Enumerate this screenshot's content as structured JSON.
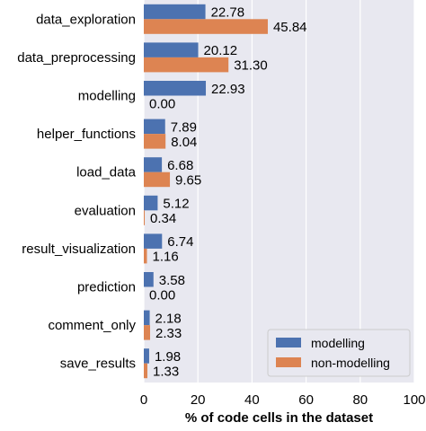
{
  "chart_data": {
    "type": "bar",
    "orientation": "horizontal",
    "categories": [
      "data_exploration",
      "data_preprocessing",
      "modelling",
      "helper_functions",
      "load_data",
      "evaluation",
      "result_visualization",
      "prediction",
      "comment_only",
      "save_results"
    ],
    "series": [
      {
        "name": "modelling",
        "color": "#4c72b0",
        "values": [
          22.78,
          20.12,
          22.93,
          7.89,
          6.68,
          5.12,
          6.74,
          3.58,
          2.18,
          1.98
        ],
        "labels": [
          "22.78",
          "20.12",
          "22.93",
          "7.89",
          "6.68",
          "5.12",
          "6.74",
          "3.58",
          "2.18",
          "1.98"
        ]
      },
      {
        "name": "non-modelling",
        "color": "#dd8452",
        "values": [
          45.84,
          31.3,
          0.0,
          8.04,
          9.65,
          0.34,
          1.16,
          0.0,
          2.33,
          1.33
        ],
        "labels": [
          "45.84",
          "31.30",
          "0.00",
          "8.04",
          "9.65",
          "0.34",
          "1.16",
          "0.00",
          "2.33",
          "1.33"
        ]
      }
    ],
    "xlabel": "% of code cells in the dataset",
    "ylabel": "",
    "xlim": [
      0,
      100
    ],
    "xticks": [
      0,
      20,
      40,
      60,
      80,
      100
    ],
    "grid": "vertical",
    "legend_position": "bottom-right",
    "background": "#e8e8f0",
    "grid_color": "#ffffff"
  }
}
